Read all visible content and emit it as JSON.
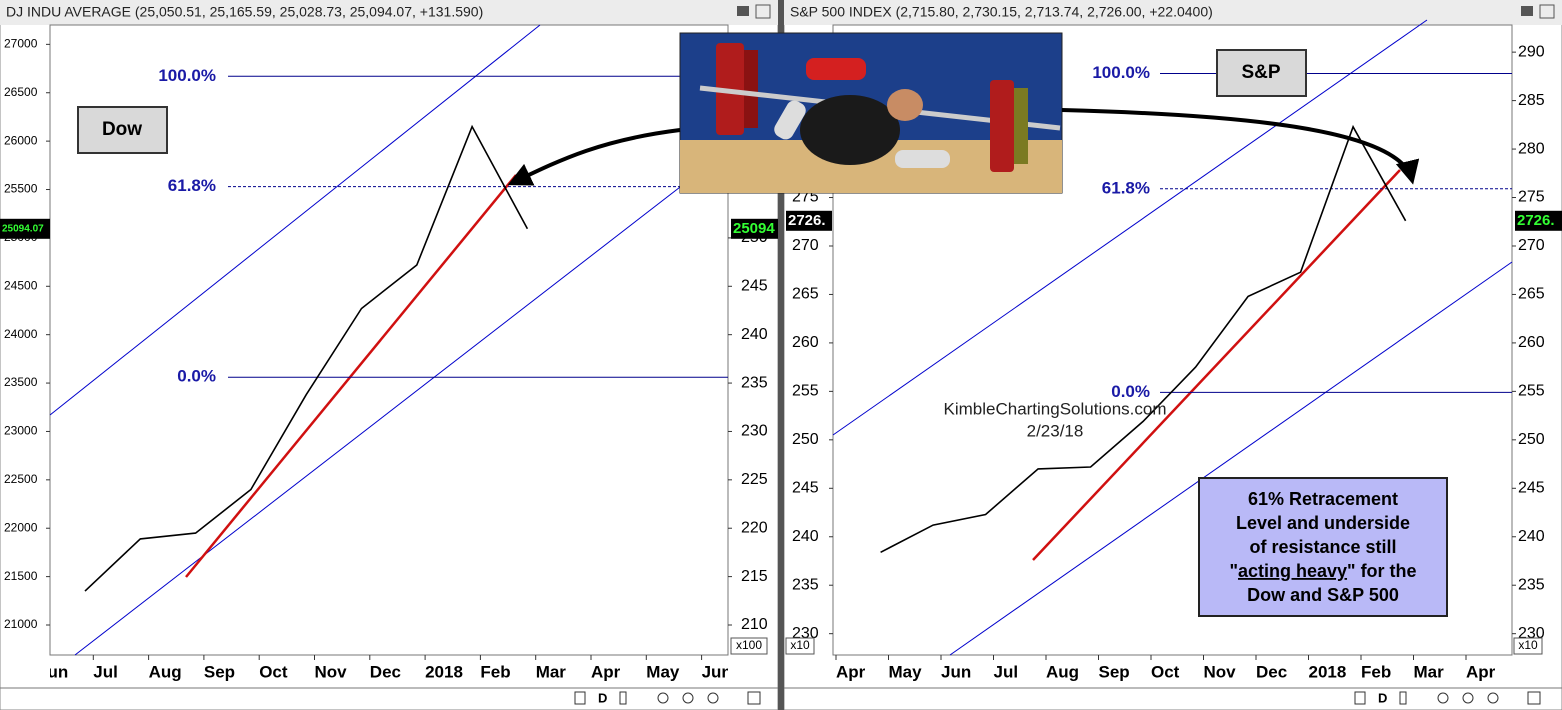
{
  "chart_data": [
    {
      "type": "line",
      "title": "DJ INDU AVERAGE (25,050.51, 25,165.59, 25,028.73, 25,094.07, +131.590)",
      "categories": [
        "Jun",
        "Jul",
        "Aug",
        "Sep",
        "Oct",
        "Nov",
        "Dec",
        "2018",
        "Feb",
        "Mar",
        "Apr",
        "May",
        "Jun"
      ],
      "values": [
        21350,
        21890,
        21950,
        22400,
        23380,
        24270,
        24720,
        26150,
        25094.07,
        null,
        null,
        null,
        null
      ],
      "color": "#000000",
      "ylim": [
        20690,
        27200
      ],
      "yticks": [
        21000,
        21500,
        22000,
        22500,
        23000,
        23500,
        24000,
        24500,
        25000,
        25500,
        26000,
        26500,
        27000
      ],
      "y2lim": [
        206.9,
        272
      ],
      "y2ticks": [
        210,
        215,
        220,
        225,
        230,
        235,
        240,
        245,
        250
      ],
      "y2_multiplier": "x100",
      "levels": [
        {
          "label": "100.0%",
          "value": 26670,
          "dashed": false
        },
        {
          "label": "61.8%",
          "value": 25530,
          "dashed": true
        },
        {
          "label": "0.0%",
          "value": 23560,
          "dashed": false
        }
      ],
      "price_tags": [
        {
          "value": 25094.07,
          "label": "25094.07"
        },
        {
          "value": 25094.07,
          "label": "25094"
        }
      ],
      "label_box": "Dow",
      "interval": "D"
    },
    {
      "type": "line",
      "title": "S&P 500 INDEX (2,715.80, 2,730.15, 2,713.74, 2,726.00, +22.0400)",
      "categories": [
        "Apr",
        "May",
        "Jun",
        "Jul",
        "Aug",
        "Sep",
        "Oct",
        "Nov",
        "Dec",
        "2018",
        "Feb",
        "Mar",
        "Apr"
      ],
      "values": [
        238.4,
        241.2,
        242.3,
        247.0,
        247.2,
        251.9,
        257.5,
        264.8,
        267.3,
        282.3,
        272.6,
        null,
        null
      ],
      "color": "#000000",
      "ylim": [
        227.8,
        292.8
      ],
      "yticks": [
        230,
        235,
        240,
        245,
        250,
        255,
        260,
        265,
        270,
        275,
        280,
        285,
        290
      ],
      "y2lim": [
        227.8,
        292.8
      ],
      "y2ticks": [
        230,
        235,
        240,
        245,
        250,
        255,
        260,
        265,
        270,
        275,
        280,
        285,
        290
      ],
      "y2_multiplier": "x10",
      "levels": [
        {
          "label": "100.0%",
          "value": 287.8,
          "dashed": false
        },
        {
          "label": "61.8%",
          "value": 275.9,
          "dashed": true
        },
        {
          "label": "0.0%",
          "value": 254.9,
          "dashed": false
        }
      ],
      "price_tags": [
        {
          "value": 272.6,
          "label": "2726."
        },
        {
          "value": 272.6,
          "label": "2726."
        }
      ],
      "label_box": "S&P",
      "interval": "D",
      "watermark": "KimbleChartingSolutions.com",
      "date": "2/23/18",
      "note": {
        "line1": "61% Retracement",
        "line2": "Level and underside",
        "line3": "of resistance still",
        "line4a": "\"",
        "line4b": "acting heavy",
        "line4c": "\" for the",
        "line5": "Dow and S&P 500"
      }
    }
  ]
}
